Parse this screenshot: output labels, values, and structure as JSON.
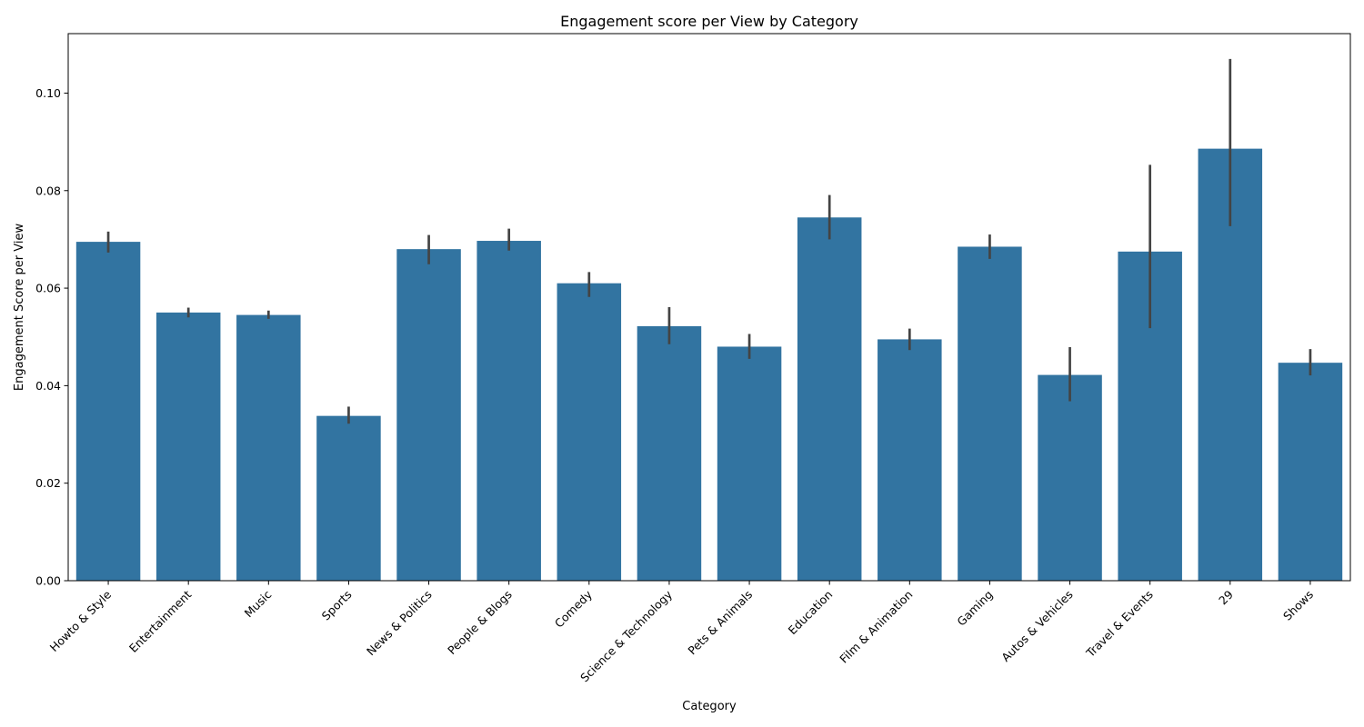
{
  "chart_data": {
    "type": "bar",
    "title": "Engagement score per View by Category",
    "xlabel": "Category",
    "ylabel": "Engagement Score per View",
    "ylim": [
      0,
      0.1122
    ],
    "yticks": [
      "0.00",
      "0.02",
      "0.04",
      "0.06",
      "0.08",
      "0.10"
    ],
    "ytick_values": [
      0,
      0.02,
      0.04,
      0.06,
      0.08,
      0.1
    ],
    "grid": false,
    "bar_color": "#3274a1",
    "error_color": "#444444",
    "categories": [
      "Howto & Style",
      "Entertainment",
      "Music",
      "Sports",
      "News & Politics",
      "People & Blogs",
      "Comedy",
      "Science & Technology",
      "Pets & Animals",
      "Education",
      "Film & Animation",
      "Gaming",
      "Autos & Vehicles",
      "Travel & Events",
      "29",
      "Shows"
    ],
    "values": [
      0.0695,
      0.055,
      0.0545,
      0.0338,
      0.068,
      0.0697,
      0.061,
      0.0522,
      0.048,
      0.0745,
      0.0495,
      0.0685,
      0.0422,
      0.0675,
      0.0886,
      0.0447
    ],
    "error_low": [
      0.0673,
      0.054,
      0.0537,
      0.0322,
      0.0649,
      0.0677,
      0.0582,
      0.0485,
      0.0455,
      0.07,
      0.0473,
      0.066,
      0.0368,
      0.0518,
      0.0727,
      0.0421
    ],
    "error_high": [
      0.0716,
      0.056,
      0.0554,
      0.0357,
      0.0709,
      0.0722,
      0.0633,
      0.0561,
      0.0506,
      0.0791,
      0.0517,
      0.071,
      0.0479,
      0.0853,
      0.107,
      0.0475
    ]
  }
}
